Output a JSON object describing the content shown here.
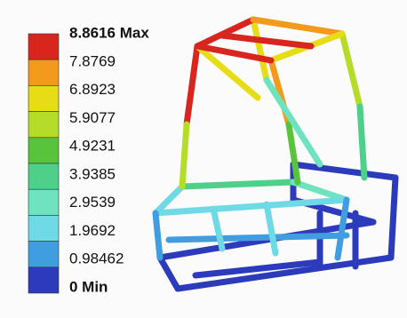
{
  "legend": {
    "labels": [
      "8.8616 Max",
      "7.8769",
      "6.8923",
      "5.9077",
      "4.9231",
      "3.9385",
      "2.9539",
      "1.9692",
      "0.98462",
      "0 Min"
    ],
    "colors": [
      "#d8261e",
      "#f39a1c",
      "#e7dd17",
      "#b6dc2a",
      "#59c43b",
      "#4fd08a",
      "#6fe2c0",
      "#6fd9e6",
      "#3f9de0",
      "#2c3bbb"
    ]
  }
}
